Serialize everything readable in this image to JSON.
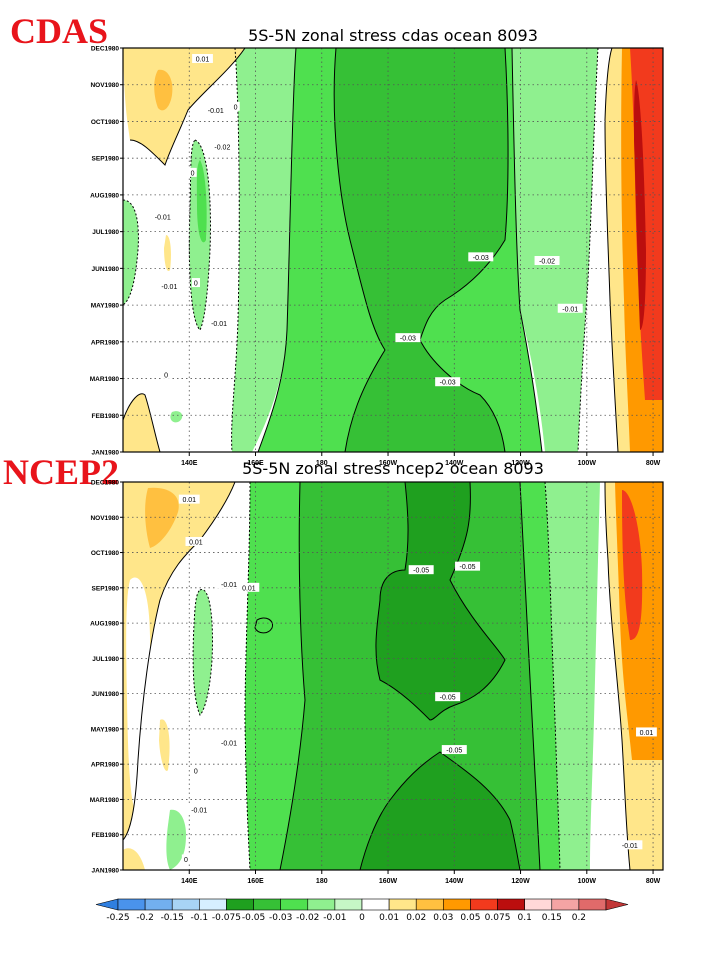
{
  "figure_labels": {
    "top": "CDAS",
    "bottom": "NCEP2"
  },
  "colors": {
    "cb_m025": "#2f7fe0",
    "cb_m02": "#4a93ec",
    "cb_m015": "#72afef",
    "cb_m01": "#a8d4f5",
    "cb_m0075": "#d6efff",
    "cb_m005": "#1fa01f",
    "cb_m003": "#36c036",
    "cb_m002": "#4fe04f",
    "cb_m001": "#8ff08f",
    "cb_m0005": "#c6f7c6",
    "cb_0": "#ffffff",
    "cb_p001": "#ffe68a",
    "cb_p002": "#ffc040",
    "cb_p003": "#ff9900",
    "cb_p005": "#f23a1d",
    "cb_p0075": "#bb0e0e",
    "cb_p01": "#ffd8d8",
    "cb_p015": "#f4a4a4",
    "cb_p02": "#e06a6a",
    "cb_p025": "#c23636"
  },
  "chart_data": [
    {
      "type": "heatmap",
      "title": "5S-5N zonal stress cdas ocean 8093",
      "x_tick_labels": [
        "140E",
        "160E",
        "180",
        "160W",
        "140W",
        "120W",
        "100W",
        "80W"
      ],
      "x_ticks_deg_east": [
        140,
        160,
        180,
        200,
        220,
        240,
        260,
        280
      ],
      "xlim_deg_east": [
        120,
        283
      ],
      "y_tick_labels": [
        "JAN1980",
        "FEB1980",
        "MAR1980",
        "APR1980",
        "MAY1980",
        "JUN1980",
        "JUL1980",
        "AUG1980",
        "SEP1980",
        "OCT1980",
        "NOV1980",
        "DEC1980"
      ],
      "ylim_month": [
        1,
        12
      ],
      "grid": true,
      "contour_labels": [
        {
          "text": "0.01",
          "lon": 144,
          "month": 11.7
        },
        {
          "text": "-0.01",
          "lon": 148,
          "month": 10.3
        },
        {
          "text": "0",
          "lon": 154,
          "month": 10.4
        },
        {
          "text": "-0.02",
          "lon": 150,
          "month": 9.3
        },
        {
          "text": "0",
          "lon": 141,
          "month": 8.6
        },
        {
          "text": "-0.01",
          "lon": 132,
          "month": 7.4
        },
        {
          "text": "0",
          "lon": 142,
          "month": 5.6
        },
        {
          "text": "-0.01",
          "lon": 134,
          "month": 5.5
        },
        {
          "text": "-0.01",
          "lon": 149,
          "month": 4.5
        },
        {
          "text": "-0.03",
          "lon": 228,
          "month": 6.3
        },
        {
          "text": "-0.02",
          "lon": 248,
          "month": 6.2
        },
        {
          "text": "-0.01",
          "lon": 255,
          "month": 4.9
        },
        {
          "text": "-0.03",
          "lon": 206,
          "month": 4.1
        },
        {
          "text": "0",
          "lon": 133,
          "month": 3.1
        },
        {
          "text": "-0.03",
          "lon": 218,
          "month": 2.9
        }
      ]
    },
    {
      "type": "heatmap",
      "title": "5S-5N zonal stress ncep2 ocean 8093",
      "x_tick_labels": [
        "140E",
        "160E",
        "180",
        "160W",
        "140W",
        "120W",
        "100W",
        "80W"
      ],
      "x_ticks_deg_east": [
        140,
        160,
        180,
        200,
        220,
        240,
        260,
        280
      ],
      "xlim_deg_east": [
        120,
        283
      ],
      "y_tick_labels": [
        "JAN1980",
        "FEB1980",
        "MAR1980",
        "APR1980",
        "MAY1980",
        "JUN1980",
        "JUL1980",
        "AUG1980",
        "SEP1980",
        "OCT1980",
        "NOV1980",
        "DEC1980"
      ],
      "ylim_month": [
        1,
        12
      ],
      "grid": true,
      "contour_labels": [
        {
          "text": "0.01",
          "lon": 140,
          "month": 11.5
        },
        {
          "text": "0.01",
          "lon": 142,
          "month": 10.3
        },
        {
          "text": "-0.05",
          "lon": 210,
          "month": 9.5
        },
        {
          "text": "-0.05",
          "lon": 224,
          "month": 9.6
        },
        {
          "text": "-0.01",
          "lon": 152,
          "month": 9.1
        },
        {
          "text": "0.01",
          "lon": 158,
          "month": 9.0
        },
        {
          "text": "-0.05",
          "lon": 218,
          "month": 5.9
        },
        {
          "text": "0.01",
          "lon": 278,
          "month": 4.9
        },
        {
          "text": "-0.01",
          "lon": 152,
          "month": 4.6
        },
        {
          "text": "-0.05",
          "lon": 220,
          "month": 4.4
        },
        {
          "text": "0",
          "lon": 142,
          "month": 3.8
        },
        {
          "text": "-0.01",
          "lon": 143,
          "month": 2.7
        },
        {
          "text": "0",
          "lon": 139,
          "month": 1.3
        },
        {
          "text": "-0.01",
          "lon": 273,
          "month": 1.7
        }
      ]
    }
  ],
  "colorbar": {
    "labels": [
      "-0.25",
      "-0.2",
      "-0.15",
      "-0.1",
      "-0.075",
      "-0.05",
      "-0.03",
      "-0.02",
      "-0.01",
      "0",
      "0.01",
      "0.02",
      "0.03",
      "0.05",
      "0.075",
      "0.1",
      "0.15",
      "0.2"
    ],
    "color_keys": [
      "cb_m025",
      "cb_m02",
      "cb_m015",
      "cb_m01",
      "cb_m0075",
      "cb_m005",
      "cb_m003",
      "cb_m002",
      "cb_m001",
      "cb_m0005",
      "cb_0",
      "cb_p001",
      "cb_p002",
      "cb_p003",
      "cb_p005",
      "cb_p0075",
      "cb_p01",
      "cb_p015",
      "cb_p02",
      "cb_p025"
    ]
  }
}
